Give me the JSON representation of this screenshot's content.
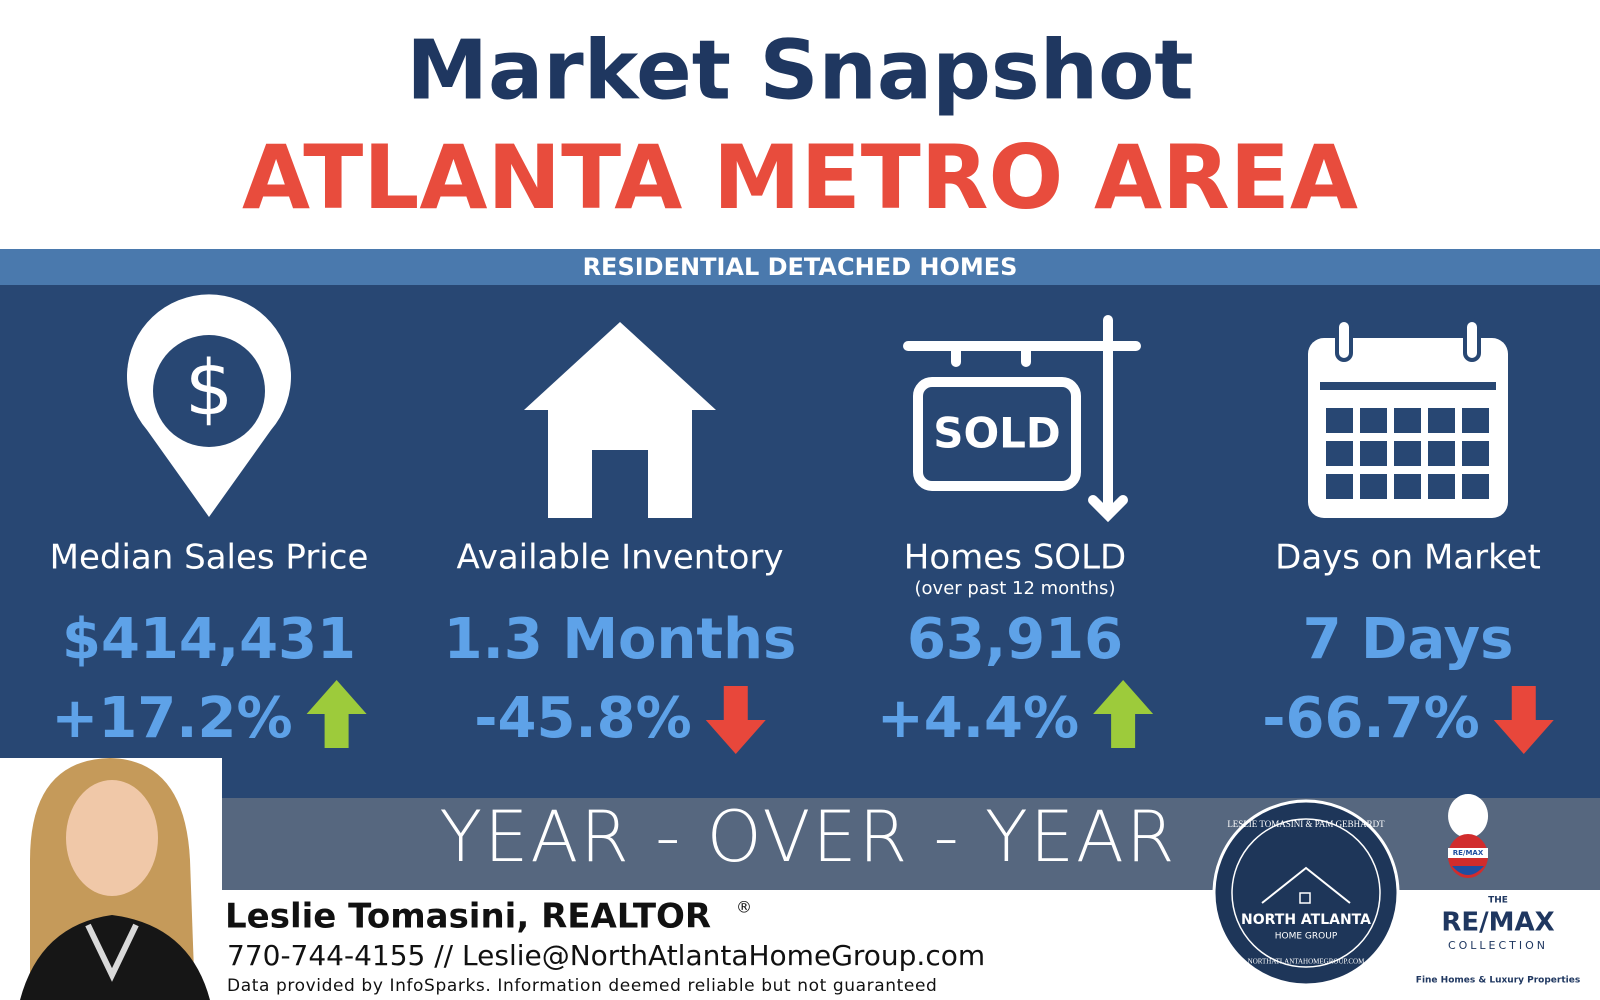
{
  "header": {
    "title": "Market Snapshot",
    "subtitle": "ATLANTA METRO AREA"
  },
  "banner": "RESIDENTIAL DETACHED HOMES",
  "stats": [
    {
      "icon": "pin",
      "icon_text": "$",
      "label": "Median Sales Price",
      "value": "$414,431",
      "change": "+17.2%",
      "trend": "up"
    },
    {
      "icon": "house",
      "label": "Available Inventory",
      "value": "1.3 Months",
      "change": "-45.8%",
      "trend": "down"
    },
    {
      "icon": "sold",
      "icon_text": "SOLD",
      "label": "Homes SOLD",
      "note": "(over past 12 months)",
      "value": "63,916",
      "change": "+4.4%",
      "trend": "up"
    },
    {
      "icon": "calendar",
      "label": "Days on Market",
      "value": "7 Days",
      "change": "-66.7%",
      "trend": "down"
    }
  ],
  "period": "YEAR - OVER - YEAR",
  "agent": {
    "name": "Leslie Tomasini, REALTOR",
    "mark": "®",
    "contact": "770-744-4155 // Leslie@NorthAtlantaHomeGroup.com",
    "disclaimer": "Data provided by InfoSparks. Information deemed reliable but not guaranteed"
  },
  "logo": {
    "ring": "LESLIE TOMASINI & PAM GEBHARDT",
    "name": "NORTH ATLANTA",
    "sub": "HOME GROUP",
    "url": "NORTHATLANTAHOMEGROUP.COM"
  },
  "brand": {
    "balloon": "RE/MAX",
    "the": "THE",
    "name": "RE/MAX",
    "collection": "COLLECTION",
    "tagline": "Fine Homes & Luxury Properties"
  }
}
